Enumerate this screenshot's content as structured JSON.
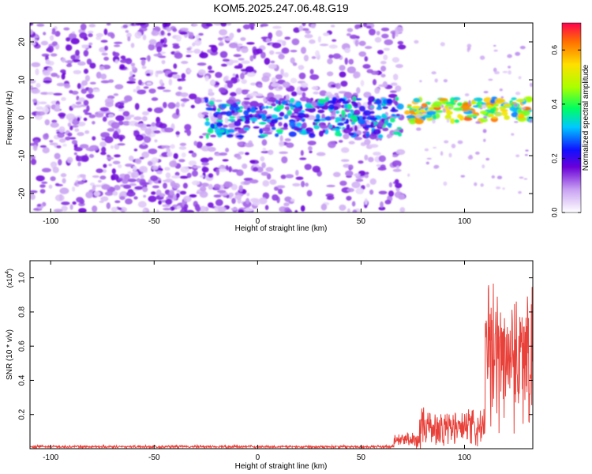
{
  "title": "KOM5.2025.247.06.48.G19",
  "chart_data": [
    {
      "type": "heatmap",
      "xlabel": "Height of straight line (km)",
      "ylabel": "Frequency (Hz)",
      "xlim": [
        -110,
        133
      ],
      "ylim": [
        -25,
        25
      ],
      "xticks": [
        -100,
        -50,
        0,
        50,
        100
      ],
      "xtick_labels": [
        "-100",
        "-50",
        "0",
        "50",
        "100"
      ],
      "yticks": [
        -20,
        -10,
        0,
        10,
        20
      ],
      "ytick_labels": [
        "-20",
        "-10",
        "0",
        "10",
        "20"
      ],
      "colorbar": {
        "label": "Normalized spectral amplitude",
        "range": [
          0.0,
          0.7
        ],
        "ticks": [
          0.0,
          0.2,
          0.4,
          0.6
        ],
        "tick_labels": [
          "0.0",
          "0.2",
          "0.4",
          "0.6"
        ]
      },
      "features": [
        {
          "x_range": [
            -110,
            70
          ],
          "freq_range": [
            -25,
            25
          ],
          "amplitude": 0.12,
          "note": "broadband scattered noise"
        },
        {
          "x_range": [
            -25,
            70
          ],
          "freq_center": 0,
          "freq_halfwidth": 5,
          "amplitude": 0.3
        },
        {
          "x_range": [
            72,
            133
          ],
          "freq_center": 2,
          "freq_halfwidth": 3,
          "amplitude": 0.55,
          "peak": 0.65
        }
      ]
    },
    {
      "type": "line",
      "xlabel": "Height of straight line (km)",
      "ylabel": "SNR (10 * v/v)",
      "yscale_label": "(x10",
      "yscale_exp": "4",
      "xlim": [
        -110,
        133
      ],
      "ylim": [
        0,
        1.1
      ],
      "xticks": [
        -100,
        -50,
        0,
        50,
        100
      ],
      "xtick_labels": [
        "-100",
        "-50",
        "0",
        "50",
        "100"
      ],
      "yticks": [
        0.2,
        0.4,
        0.6,
        0.8,
        1.0
      ],
      "ytick_labels": [
        "0.2",
        "0.4",
        "0.6",
        "0.8",
        "1.0"
      ],
      "color": "#e8413a",
      "segments": [
        {
          "x_range": [
            -110,
            66
          ],
          "level": 0.012,
          "spread": 0.01
        },
        {
          "x_range": [
            66,
            78
          ],
          "level": 0.05,
          "spread": 0.06
        },
        {
          "x_range": [
            78,
            110
          ],
          "level": 0.12,
          "spread": 0.14
        },
        {
          "x_range": [
            110,
            133
          ],
          "level": 0.55,
          "spread": 0.5
        }
      ]
    }
  ]
}
